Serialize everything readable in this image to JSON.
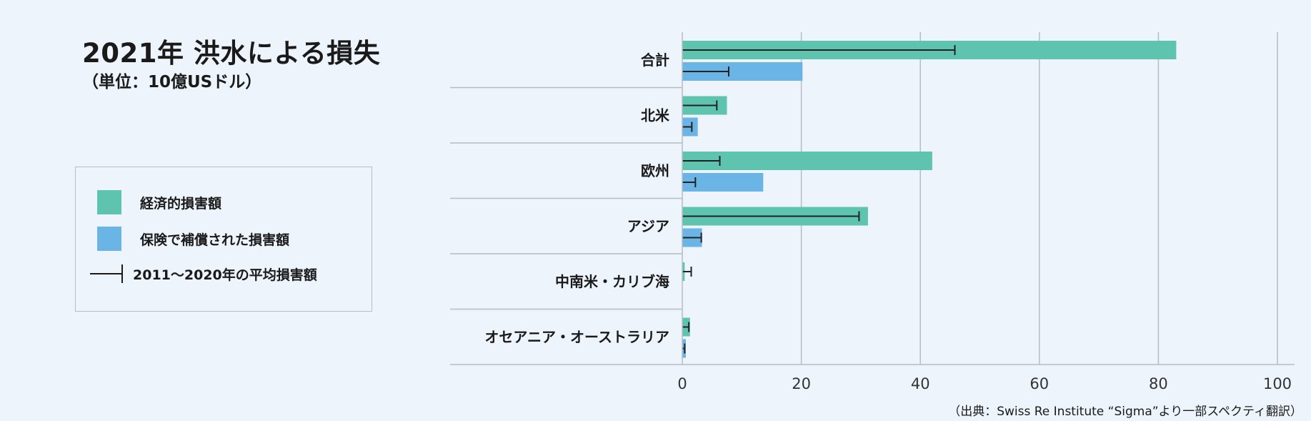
{
  "title": "2021年 洪水による損失",
  "subtitle": "（単位：10億USドル）",
  "legend": {
    "economic_label": "経済的損害額",
    "insured_label": "保険で補償された損害額",
    "average_label": "2011～2020年の平均損害額"
  },
  "source": "（出典：Swiss Re Institute “Sigma”より一部スペクティ翻訳）",
  "colors": {
    "economic": "#5ec4b0",
    "insured": "#6ab4e6",
    "grid": "#b7bcc4",
    "errbar": "#222222",
    "background": "#edf4fc"
  },
  "chart_data": {
    "type": "bar",
    "orientation": "horizontal",
    "categories": [
      "合計",
      "北米",
      "欧州",
      "アジア",
      "中南米・カリブ海",
      "オセアニア・オーストラリア"
    ],
    "series": [
      {
        "name": "経済的損害額",
        "values": [
          83,
          7.5,
          42,
          31.2,
          0.4,
          1.3
        ]
      },
      {
        "name": "保険で補償された損害額",
        "values": [
          20.2,
          2.6,
          13.6,
          3.3,
          0,
          0.6
        ]
      }
    ],
    "average_2011_2020": {
      "name": "2011～2020年の平均損害額",
      "economic": [
        45.8,
        5.8,
        6.3,
        29.7,
        1.5,
        1.1
      ],
      "insured": [
        7.8,
        1.6,
        2.2,
        3.2,
        null,
        0.4
      ]
    },
    "xlim": [
      0,
      100
    ],
    "xticks": [
      0,
      20,
      40,
      60,
      80,
      100
    ],
    "grid": true
  }
}
